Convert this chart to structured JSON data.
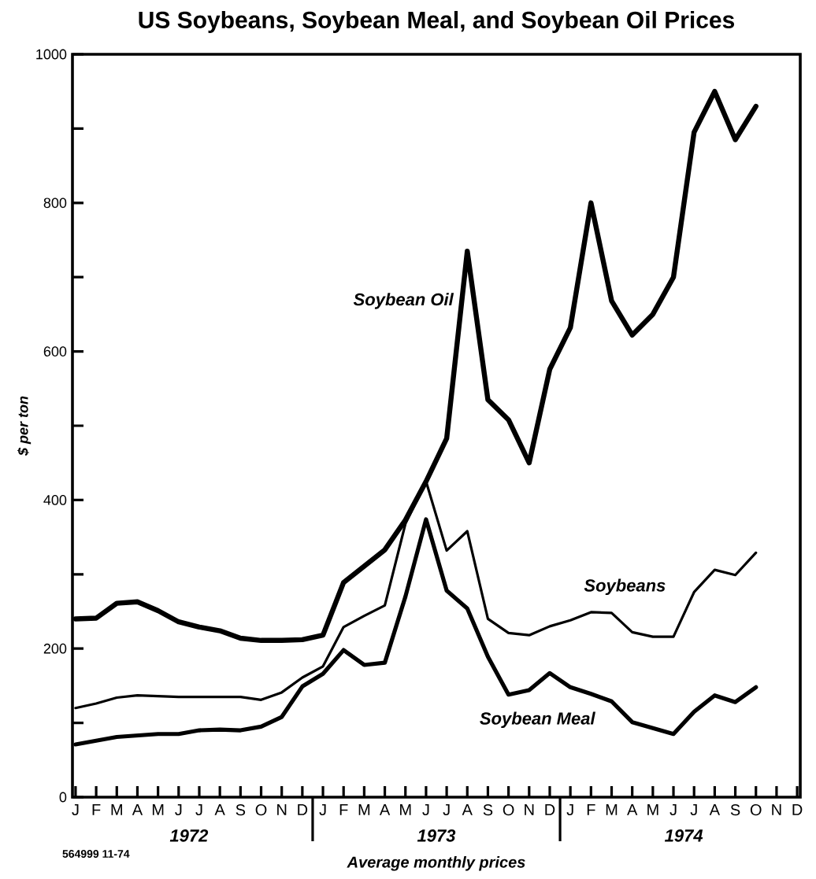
{
  "chart_data": {
    "type": "line",
    "title": "US Soybeans, Soybean Meal, and Soybean Oil Prices",
    "xlabel": "Average monthly prices",
    "ylabel": "$ per ton",
    "categories": [
      "J",
      "F",
      "M",
      "A",
      "M",
      "J",
      "J",
      "A",
      "S",
      "O",
      "N",
      "D",
      "J",
      "F",
      "M",
      "A",
      "M",
      "J",
      "J",
      "A",
      "S",
      "O",
      "N",
      "D",
      "J",
      "F",
      "M",
      "A",
      "M",
      "J",
      "J",
      "A",
      "S",
      "O",
      "N",
      "D"
    ],
    "series": [
      {
        "name": "Soybean Oil",
        "color": "#000000",
        "values": [
          240,
          241,
          261,
          263,
          251,
          236,
          229,
          224,
          214,
          211,
          211,
          212,
          218,
          289,
          311,
          333,
          373,
          425,
          483,
          735,
          535,
          508,
          450,
          576,
          632,
          800,
          668,
          622,
          650,
          700,
          895,
          950,
          885,
          930,
          null,
          null
        ]
      },
      {
        "name": "Soybeans",
        "color": "#000000",
        "values": [
          120,
          126,
          134,
          137,
          136,
          135,
          135,
          135,
          135,
          131,
          141,
          161,
          176,
          229,
          244,
          258,
          368,
          425,
          332,
          358,
          240,
          221,
          218,
          230,
          238,
          249,
          248,
          222,
          216,
          216,
          276,
          306,
          299,
          329,
          null,
          null
        ]
      },
      {
        "name": "Soybean Meal",
        "color": "#000000",
        "values": [
          71,
          76,
          81,
          83,
          85,
          85,
          90,
          91,
          90,
          95,
          108,
          149,
          166,
          198,
          178,
          181,
          270,
          374,
          278,
          254,
          189,
          138,
          144,
          167,
          148,
          139,
          129,
          101,
          93,
          85,
          115,
          137,
          128,
          148,
          null,
          null
        ]
      }
    ],
    "ylim": [
      0,
      1000
    ],
    "yticks": [
      0,
      {
        "value": 100,
        "label": null
      },
      200,
      {
        "value": 300,
        "label": null
      },
      400,
      {
        "value": 500,
        "label": null
      },
      600,
      {
        "value": 700,
        "label": null
      },
      800,
      {
        "value": 900,
        "label": null
      },
      1000
    ],
    "annotations": [
      "1972",
      "1973",
      "1974",
      "564999 11-74"
    ]
  }
}
